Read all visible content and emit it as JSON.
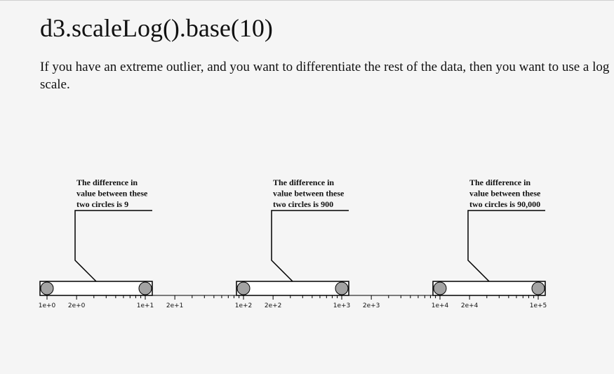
{
  "page": {
    "title": "d3.scaleLog().base(10)",
    "description": "If you have an extreme outlier, and you want to differentiate the rest of the data, then you want to use a log scale."
  },
  "annotations": [
    {
      "lines": [
        "The difference in",
        "value between these",
        "two circles is 9"
      ],
      "circles": [
        1,
        10
      ]
    },
    {
      "lines": [
        "The difference in",
        "value between these",
        "two circles is 900"
      ],
      "circles": [
        100,
        1000
      ]
    },
    {
      "lines": [
        "The difference in",
        "value between these",
        "two circles is 90,000"
      ],
      "circles": [
        10000,
        100000
      ]
    }
  ],
  "axis": {
    "scale": "log",
    "base": 10,
    "domain": [
      1,
      100000
    ],
    "major_ticks": [
      {
        "value": 1,
        "label": "1e+0"
      },
      {
        "value": 2,
        "label": "2e+0"
      },
      {
        "value": 10,
        "label": "1e+1"
      },
      {
        "value": 20,
        "label": "2e+1"
      },
      {
        "value": 100,
        "label": "1e+2"
      },
      {
        "value": 200,
        "label": "2e+2"
      },
      {
        "value": 1000,
        "label": "1e+3"
      },
      {
        "value": 2000,
        "label": "2e+3"
      },
      {
        "value": 10000,
        "label": "1e+4"
      },
      {
        "value": 20000,
        "label": "2e+4"
      },
      {
        "value": 100000,
        "label": "1e+5"
      }
    ]
  },
  "colors": {
    "circle_fill": "#a3a3a3",
    "line": "#000000",
    "bar_fill": "#ffffff"
  }
}
